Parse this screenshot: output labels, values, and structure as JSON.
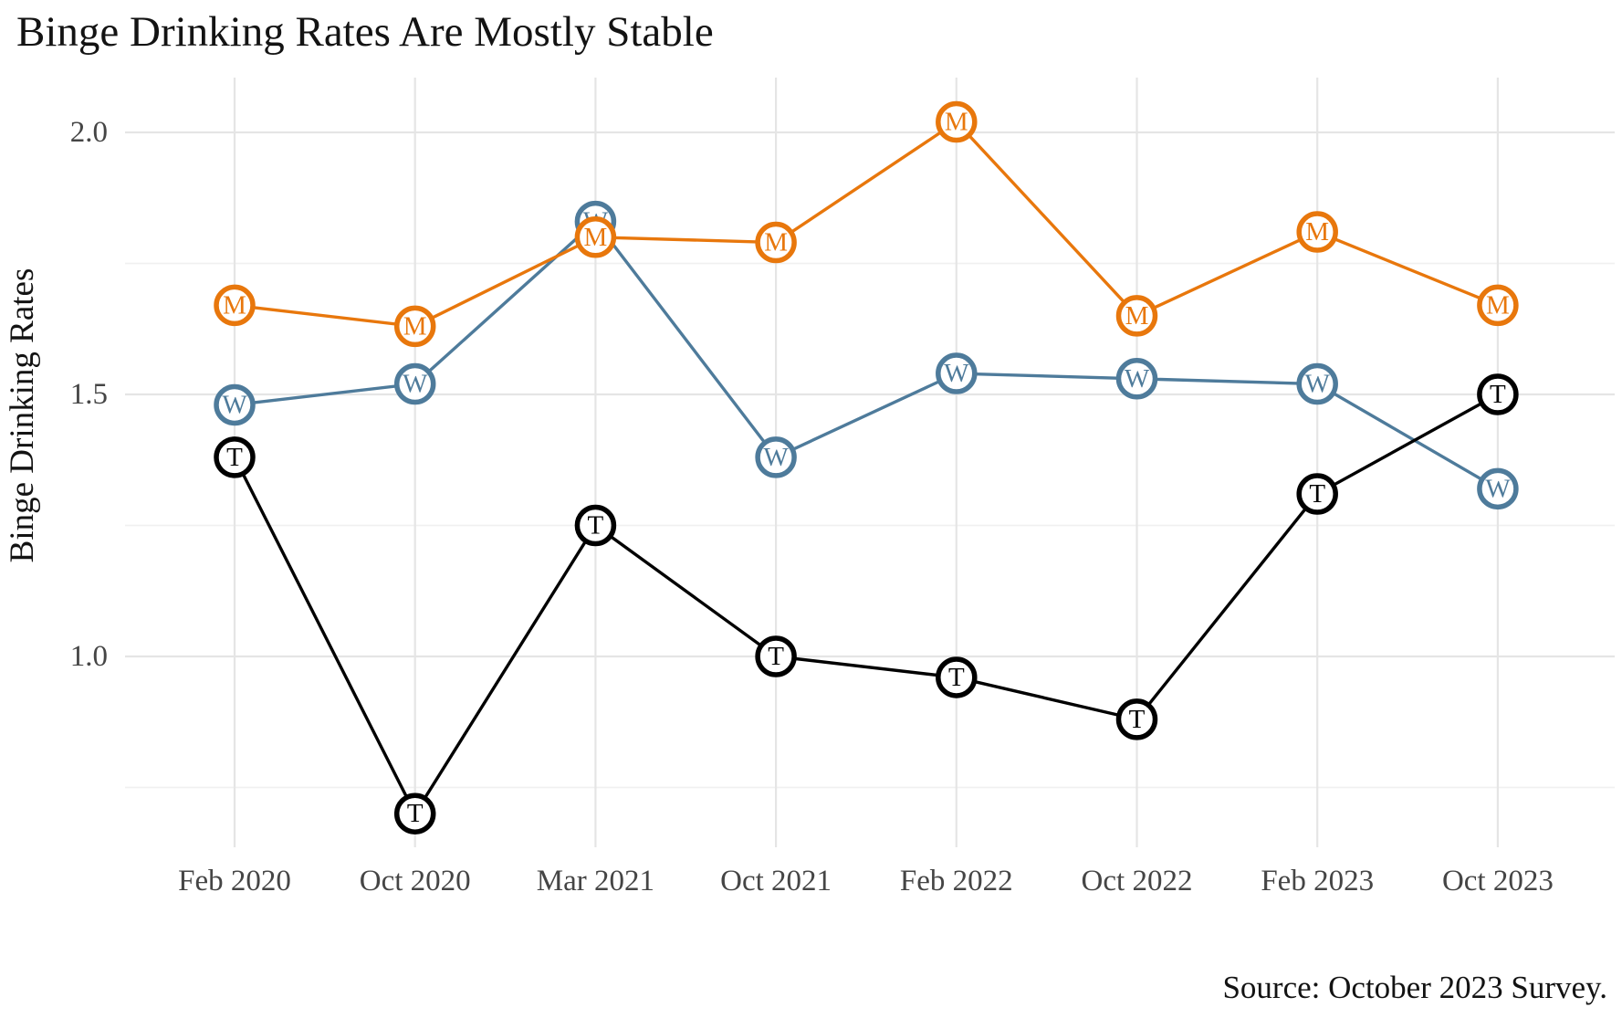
{
  "chart_data": {
    "type": "line",
    "title": "Binge Drinking Rates Are Mostly Stable",
    "ylabel": "Binge Drinking Rates",
    "source_note": "Source: October 2023 Survey.",
    "categories": [
      "Feb 2020",
      "Oct 2020",
      "Mar 2021",
      "Oct 2021",
      "Feb 2022",
      "Oct 2022",
      "Feb 2023",
      "Oct 2023"
    ],
    "y_ticks": [
      {
        "value": 1.0,
        "label": "1.0"
      },
      {
        "value": 1.5,
        "label": "1.5"
      },
      {
        "value": 2.0,
        "label": "2.0"
      }
    ],
    "y_minor_gridlines": [
      0.75,
      1.25,
      1.75
    ],
    "ylim": [
      0.62,
      2.1
    ],
    "grid": "major and minor horizontal, major vertical per category",
    "legend": "none (series identified by circled letter markers on points)",
    "series": [
      {
        "name": "W",
        "marker_letter": "W",
        "color": "#4E7B9B",
        "values": [
          1.48,
          1.52,
          1.83,
          1.38,
          1.54,
          1.53,
          1.52,
          1.32
        ]
      },
      {
        "name": "M",
        "marker_letter": "M",
        "color": "#E8770C",
        "values": [
          1.67,
          1.63,
          1.8,
          1.79,
          2.02,
          1.65,
          1.81,
          1.67
        ]
      },
      {
        "name": "T",
        "marker_letter": "T",
        "color": "#000000",
        "values": [
          1.38,
          0.7,
          1.25,
          1.0,
          0.96,
          0.88,
          1.31,
          1.5
        ]
      }
    ],
    "colors": {
      "background": "#ffffff",
      "major_grid": "#e5e5e5",
      "minor_grid": "#f0f0f0",
      "tick_label": "#454545",
      "title_text": "#131313"
    }
  }
}
